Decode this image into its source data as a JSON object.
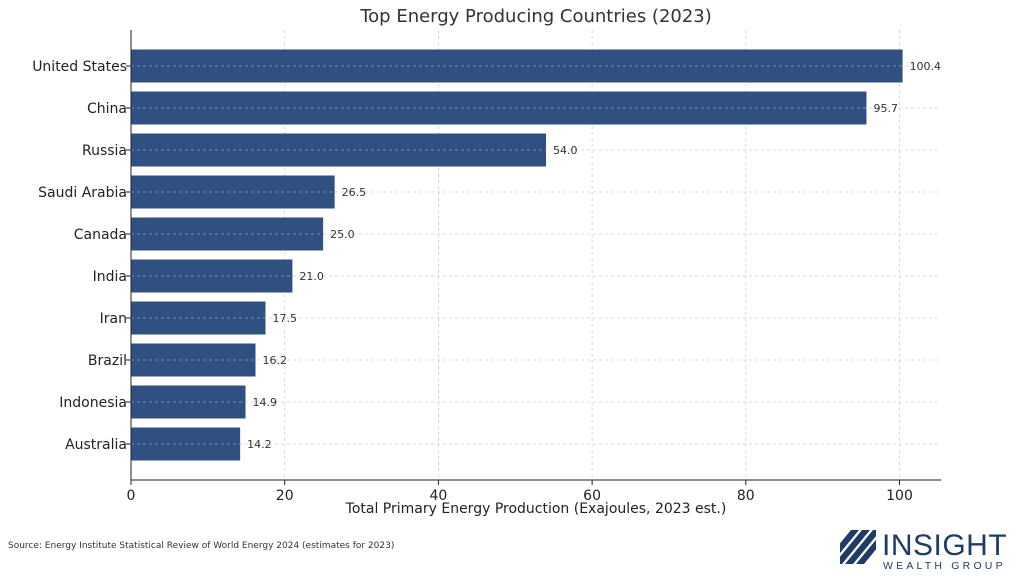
{
  "chart_data": {
    "type": "bar",
    "orientation": "horizontal",
    "title": "Top Energy Producing Countries (2023)",
    "xlabel": "Total Primary Energy Production (Exajoules, 2023 est.)",
    "ylabel": "",
    "categories": [
      "United States",
      "China",
      "Russia",
      "Saudi Arabia",
      "Canada",
      "India",
      "Iran",
      "Brazil",
      "Indonesia",
      "Australia"
    ],
    "values": [
      100.4,
      95.7,
      54.0,
      26.5,
      25.0,
      21.0,
      17.5,
      16.2,
      14.9,
      14.2
    ],
    "value_labels": [
      "100.4",
      "95.7",
      "54.0",
      "26.5",
      "25.0",
      "21.0",
      "17.5",
      "16.2",
      "14.9",
      "14.2"
    ],
    "xlim": [
      0,
      105.4
    ],
    "xticks": [
      0,
      20,
      40,
      60,
      80,
      100
    ],
    "grid": true,
    "bar_color": "#2f5080"
  },
  "footer": {
    "source": "Source: Energy Institute Statistical Review of World Energy 2024 (estimates for 2023)"
  },
  "logo": {
    "name": "INSIGHT",
    "tagline": "WEALTH GROUP",
    "color": "#1f3b66"
  }
}
